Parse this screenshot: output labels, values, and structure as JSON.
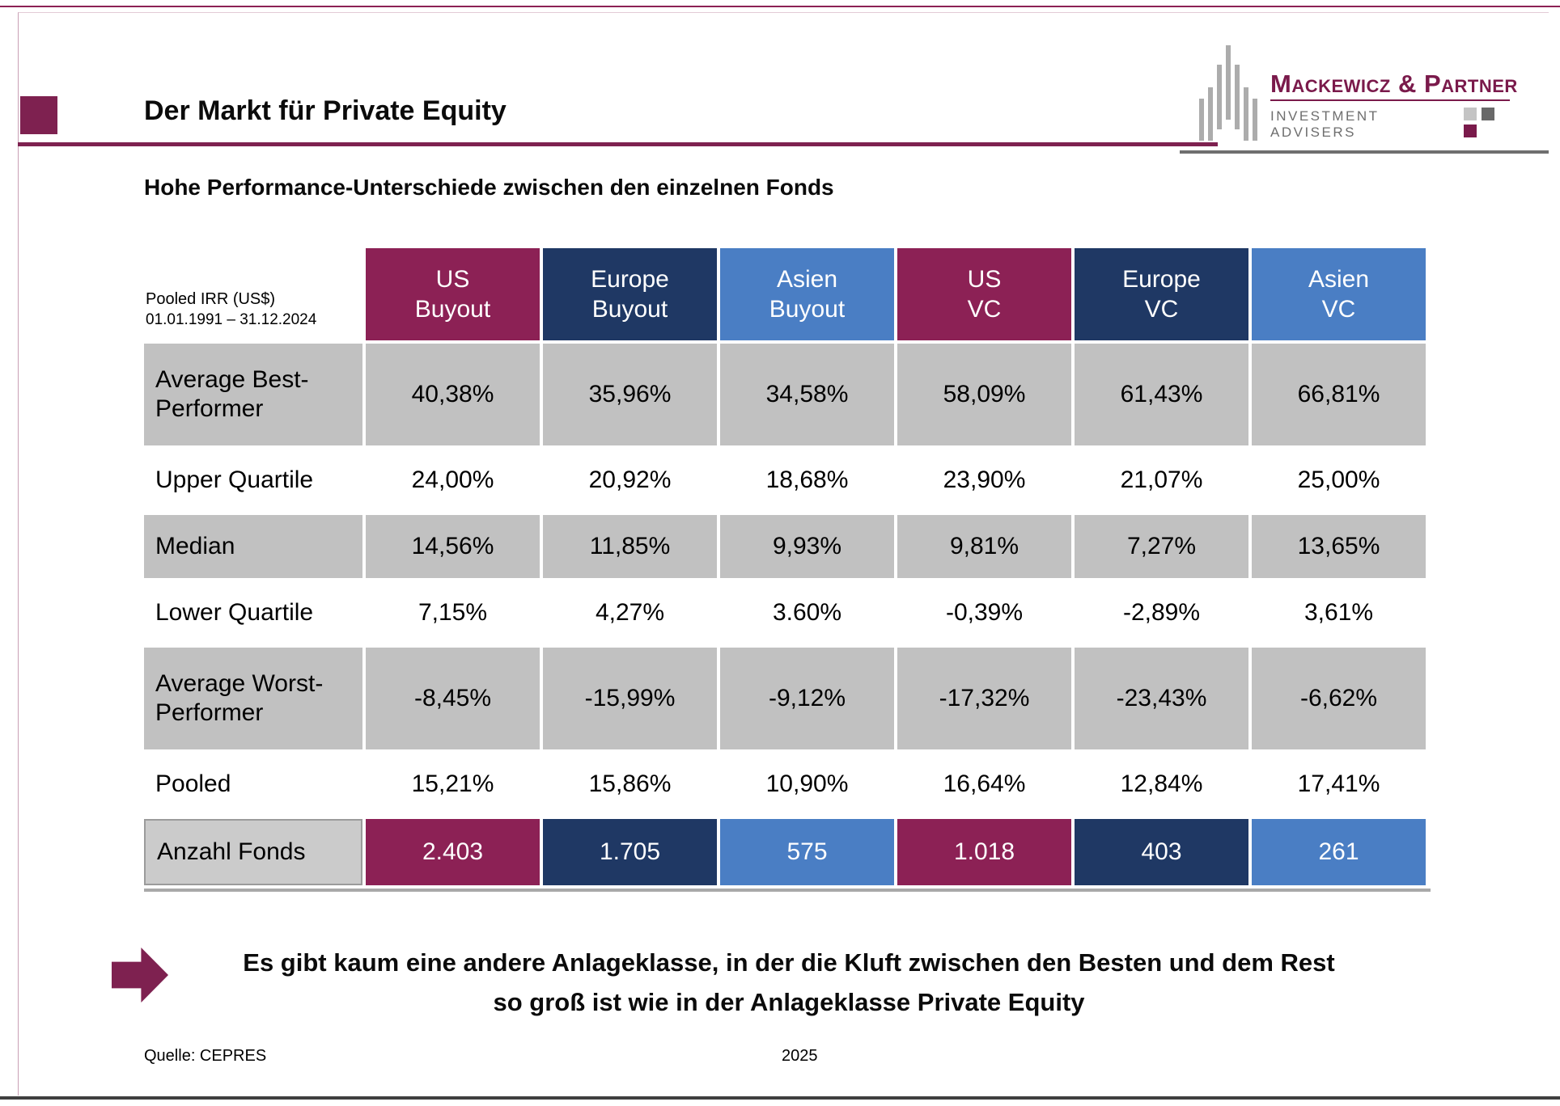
{
  "slide": {
    "title": "Der Markt für Private Equity",
    "subtitle": "Hohe Performance-Unterschiede zwischen den einzelnen Fonds",
    "conclusion_line1": "Es gibt kaum eine andere Anlageklasse, in der die Kluft zwischen den Besten und dem Rest",
    "conclusion_line2": "so groß ist wie in der Anlageklasse Private Equity",
    "source": "Quelle: CEPRES",
    "year": "2025"
  },
  "logo": {
    "company": "Mackewicz & Partner",
    "tagline": "INVESTMENT ADVISERS"
  },
  "colors": {
    "accent_maroon": "#7E2150",
    "cell_maroon": "#8C2155",
    "cell_navy": "#1F3864",
    "cell_blue": "#4A7EC4",
    "cell_gray": "#C1C1C1",
    "logo_maroon": "#7A1A4B"
  },
  "table": {
    "corner": {
      "line1": "Pooled IRR (US$)",
      "line2": "01.01.1991 – 31.12.2024"
    },
    "columns": [
      {
        "label": "US\nBuyout",
        "color": "#8C2155"
      },
      {
        "label": "Europe\nBuyout",
        "color": "#1F3864"
      },
      {
        "label": "Asien\nBuyout",
        "color": "#4A7EC4"
      },
      {
        "label": "US\nVC",
        "color": "#8C2155"
      },
      {
        "label": "Europe\nVC",
        "color": "#1F3864"
      },
      {
        "label": "Asien\nVC",
        "color": "#4A7EC4"
      }
    ],
    "rows": [
      {
        "label": "Average Best-\nPerformer",
        "shaded": true,
        "values": [
          "40,38%",
          "35,96%",
          "34,58%",
          "58,09%",
          "61,43%",
          "66,81%"
        ]
      },
      {
        "label": "Upper Quartile",
        "shaded": false,
        "values": [
          "24,00%",
          "20,92%",
          "18,68%",
          "23,90%",
          "21,07%",
          "25,00%"
        ]
      },
      {
        "label": "Median",
        "shaded": true,
        "values": [
          "14,56%",
          "11,85%",
          "9,93%",
          "9,81%",
          "7,27%",
          "13,65%"
        ]
      },
      {
        "label": "Lower Quartile",
        "shaded": false,
        "values": [
          "7,15%",
          "4,27%",
          "3.60%",
          "-0,39%",
          "-2,89%",
          "3,61%"
        ]
      },
      {
        "label": "Average Worst-\nPerformer",
        "shaded": true,
        "values": [
          "-8,45%",
          "-15,99%",
          "-9,12%",
          "-17,32%",
          "-23,43%",
          "-6,62%"
        ]
      },
      {
        "label": "Pooled",
        "shaded": false,
        "values": [
          "15,21%",
          "15,86%",
          "10,90%",
          "16,64%",
          "12,84%",
          "17,41%"
        ]
      },
      {
        "label": "Anzahl Fonds",
        "shaded": true,
        "colored": true,
        "values": [
          "2.403",
          "1.705",
          "575",
          "1.018",
          "403",
          "261"
        ]
      }
    ]
  }
}
